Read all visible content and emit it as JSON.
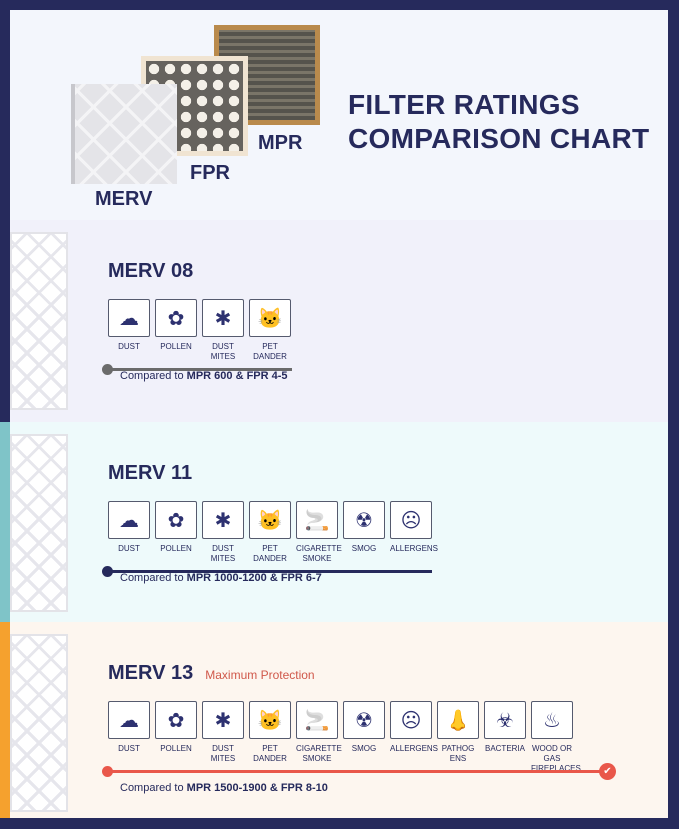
{
  "header": {
    "title_line1": "FILTER RATINGS",
    "title_line2": "COMPARISON CHART",
    "filters": [
      "MERV",
      "FPR",
      "MPR"
    ]
  },
  "sections": [
    {
      "title": "MERV 08",
      "subtitle": "",
      "compare_prefix": "Compared to ",
      "compare_bold": "MPR 600 & FPR 4-5",
      "accent": "#262a5c",
      "bar_color": "#6b6b6b",
      "bg": "#f1f1fa",
      "items": [
        {
          "label": "DUST",
          "icon": "dust-icon",
          "glyph": "☁"
        },
        {
          "label": "POLLEN",
          "icon": "pollen-icon",
          "glyph": "✿"
        },
        {
          "label": "DUST MITES",
          "icon": "dust-mite-icon",
          "glyph": "✱"
        },
        {
          "label": "PET DANDER",
          "icon": "cat-icon",
          "glyph": "🐱"
        }
      ]
    },
    {
      "title": "MERV 11",
      "subtitle": "",
      "compare_prefix": "Compared to ",
      "compare_bold": "MPR 1000-1200 & FPR 6-7",
      "accent": "#7fc4c8",
      "bar_color": "#262a5c",
      "bg": "#eefafb",
      "items": [
        {
          "label": "DUST",
          "icon": "dust-icon",
          "glyph": "☁"
        },
        {
          "label": "POLLEN",
          "icon": "pollen-icon",
          "glyph": "✿"
        },
        {
          "label": "DUST MITES",
          "icon": "dust-mite-icon",
          "glyph": "✱"
        },
        {
          "label": "PET DANDER",
          "icon": "cat-icon",
          "glyph": "🐱"
        },
        {
          "label": "CIGARETTE SMOKE",
          "icon": "cigarette-icon",
          "glyph": "🚬"
        },
        {
          "label": "SMOG",
          "icon": "gas-mask-icon",
          "glyph": "☢"
        },
        {
          "label": "ALLERGENS",
          "icon": "allergen-icon",
          "glyph": "☹"
        }
      ]
    },
    {
      "title": "MERV 13",
      "subtitle": "Maximum Protection",
      "compare_prefix": "Compared to ",
      "compare_bold": "MPR 1500-1900 & FPR 8-10",
      "accent": "#f5a12e",
      "bar_color": "#e9574a",
      "bg": "#fdf6ef",
      "items": [
        {
          "label": "DUST",
          "icon": "dust-icon",
          "glyph": "☁"
        },
        {
          "label": "POLLEN",
          "icon": "pollen-icon",
          "glyph": "✿"
        },
        {
          "label": "DUST MITES",
          "icon": "dust-mite-icon",
          "glyph": "✱"
        },
        {
          "label": "PET DANDER",
          "icon": "cat-icon",
          "glyph": "🐱"
        },
        {
          "label": "CIGARETTE SMOKE",
          "icon": "cigarette-icon",
          "glyph": "🚬"
        },
        {
          "label": "SMOG",
          "icon": "gas-mask-icon",
          "glyph": "☢"
        },
        {
          "label": "ALLERGENS",
          "icon": "allergen-icon",
          "glyph": "☹"
        },
        {
          "label": "PATHOG ENS",
          "icon": "nose-icon",
          "glyph": "👃"
        },
        {
          "label": "BACTERIA",
          "icon": "biohazard-icon",
          "glyph": "☣"
        },
        {
          "label": "WOOD OR GAS FIREPLACES",
          "icon": "fireplace-icon",
          "glyph": "♨"
        }
      ]
    }
  ]
}
